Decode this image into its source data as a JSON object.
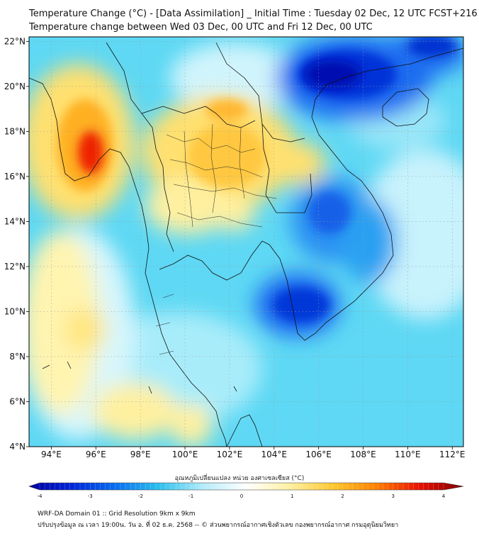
{
  "header": {
    "title_line1": "Temperature Change (°C) - [Data Assimilation] _ Initial Time : Tuesday 02 Dec, 12 UTC FCST+216",
    "title_line2": "Temperature change between Wed 03 Dec, 00 UTC and Fri 12 Dec, 00 UTC"
  },
  "map": {
    "lon_ticks": [
      "94°E",
      "96°E",
      "98°E",
      "100°E",
      "102°E",
      "104°E",
      "106°E",
      "108°E",
      "110°E",
      "112°E"
    ],
    "lat_ticks": [
      "22°N",
      "20°N",
      "18°N",
      "16°N",
      "14°N",
      "12°N",
      "10°N",
      "8°N",
      "6°N",
      "4°N"
    ],
    "lon_values": [
      94,
      96,
      98,
      100,
      102,
      104,
      106,
      108,
      110,
      112
    ],
    "lat_values": [
      22,
      20,
      18,
      16,
      14,
      12,
      10,
      8,
      6,
      4
    ],
    "lon_range": [
      93,
      112.5
    ],
    "lat_range": [
      4,
      22.2
    ]
  },
  "colorbar": {
    "label": "อุณหภูมิเปลี่ยนแปลง หน่วย องศาเซลเซียส (°C)",
    "ticks": [
      "-4",
      "-3",
      "-2",
      "-1",
      "0",
      "1",
      "2",
      "3",
      "4"
    ],
    "tick_values": [
      -4,
      -3,
      -2,
      -1,
      0,
      1,
      2,
      3,
      4
    ],
    "range": [
      -4,
      4
    ],
    "colors": [
      "#0000a0",
      "#0028d8",
      "#0a6ff0",
      "#2cc0ee",
      "#b4ecfa",
      "#ffffff",
      "#fff0a0",
      "#ffc830",
      "#ff8000",
      "#e81000",
      "#800000"
    ]
  },
  "footer": {
    "line1": "WRF-DA Domain 01 :: Grid Resolution 9km x 9km",
    "line2": "ปรับปรุงข้อมูล ณ เวลา 19:00น. วัน อ. ที่ 02 ธ.ค. 2568 -- © ส่วนพยากรณ์อากาศเชิงตัวเลข กองพยากรณ์อากาศ กรมอุตุนิยมวิทยา"
  }
}
